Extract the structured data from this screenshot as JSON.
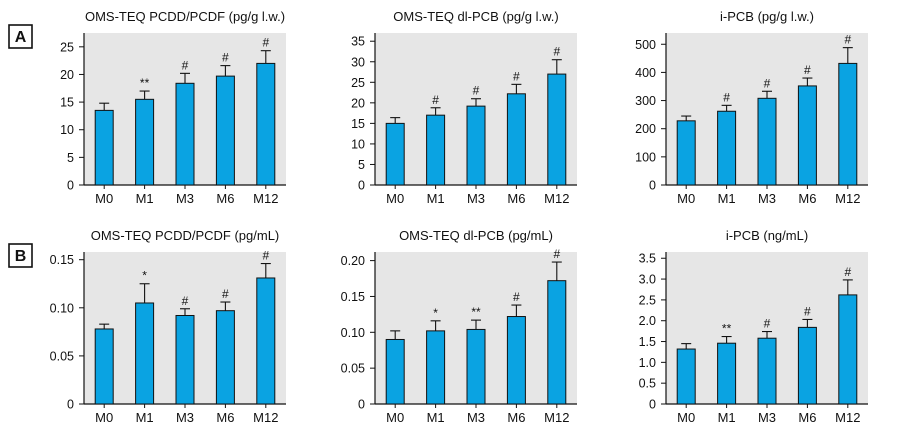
{
  "panels": [
    {
      "label": "A"
    },
    {
      "label": "B"
    }
  ],
  "colors": {
    "bar": "#0aa3e2",
    "plot_bg": "#e6e6e6",
    "axis": "#111111"
  },
  "chart_data": [
    {
      "type": "bar",
      "panel": "A",
      "title": "OMS-TEQ PCDD/PCDF (pg/g l.w.)",
      "categories": [
        "M0",
        "M1",
        "M3",
        "M6",
        "M12"
      ],
      "values": [
        13.5,
        15.5,
        18.4,
        19.7,
        22.0
      ],
      "error_upper": [
        14.8,
        17.0,
        20.2,
        21.6,
        24.3
      ],
      "annotations": [
        "",
        "**",
        "#",
        "#",
        "#"
      ],
      "ylim": [
        0,
        27.5
      ],
      "yticks": [
        0,
        5,
        10,
        15,
        20,
        25
      ],
      "yticklabels": [
        "0",
        "5",
        "10",
        "15",
        "20",
        "25"
      ]
    },
    {
      "type": "bar",
      "panel": "A",
      "title": "OMS-TEQ dl-PCB (pg/g l.w.)",
      "categories": [
        "M0",
        "M1",
        "M3",
        "M6",
        "M12"
      ],
      "values": [
        15.0,
        17.0,
        19.2,
        22.2,
        27.0
      ],
      "error_upper": [
        16.4,
        18.8,
        21.0,
        24.5,
        30.5
      ],
      "annotations": [
        "",
        "#",
        "#",
        "#",
        "#"
      ],
      "ylim": [
        0,
        37
      ],
      "yticks": [
        0,
        5,
        10,
        15,
        20,
        25,
        30,
        35
      ],
      "yticklabels": [
        "0",
        "5",
        "10",
        "15",
        "20",
        "25",
        "30",
        "35"
      ]
    },
    {
      "type": "bar",
      "panel": "A",
      "title": "i-PCB (pg/g l.w.)",
      "categories": [
        "M0",
        "M1",
        "M3",
        "M6",
        "M12"
      ],
      "values": [
        228,
        262,
        308,
        352,
        432
      ],
      "error_upper": [
        245,
        283,
        333,
        380,
        488
      ],
      "annotations": [
        "",
        "#",
        "#",
        "#",
        "#"
      ],
      "ylim": [
        0,
        540
      ],
      "yticks": [
        0,
        100,
        200,
        300,
        400,
        500
      ],
      "yticklabels": [
        "0",
        "100",
        "200",
        "300",
        "400",
        "500"
      ]
    },
    {
      "type": "bar",
      "panel": "B",
      "title": "OMS-TEQ PCDD/PCDF (pg/mL)",
      "categories": [
        "M0",
        "M1",
        "M3",
        "M6",
        "M12"
      ],
      "values": [
        0.078,
        0.105,
        0.092,
        0.097,
        0.131
      ],
      "error_upper": [
        0.083,
        0.125,
        0.099,
        0.106,
        0.146
      ],
      "annotations": [
        "",
        "*",
        "#",
        "#",
        "#"
      ],
      "ylim": [
        0,
        0.158
      ],
      "yticks": [
        0,
        0.05,
        0.1,
        0.15
      ],
      "yticklabels": [
        "0",
        "0.05",
        "0.10",
        "0.15"
      ]
    },
    {
      "type": "bar",
      "panel": "B",
      "title": "OMS-TEQ dl-PCB (pg/mL)",
      "categories": [
        "M0",
        "M1",
        "M3",
        "M6",
        "M12"
      ],
      "values": [
        0.09,
        0.102,
        0.104,
        0.122,
        0.172
      ],
      "error_upper": [
        0.102,
        0.116,
        0.117,
        0.138,
        0.198
      ],
      "annotations": [
        "",
        "*",
        "**",
        "#",
        "#"
      ],
      "ylim": [
        0,
        0.212
      ],
      "yticks": [
        0,
        0.05,
        0.1,
        0.15,
        0.2
      ],
      "yticklabels": [
        "0",
        "0.05",
        "0.10",
        "0.15",
        "0.20"
      ]
    },
    {
      "type": "bar",
      "panel": "B",
      "title": "i-PCB (ng/mL)",
      "categories": [
        "M0",
        "M1",
        "M3",
        "M6",
        "M12"
      ],
      "values": [
        1.32,
        1.46,
        1.58,
        1.84,
        2.62
      ],
      "error_upper": [
        1.45,
        1.62,
        1.74,
        2.03,
        2.98
      ],
      "annotations": [
        "",
        "**",
        "#",
        "#",
        "#"
      ],
      "ylim": [
        0,
        3.65
      ],
      "yticks": [
        0,
        0.5,
        1,
        1.5,
        2,
        2.5,
        3,
        3.5
      ],
      "yticklabels": [
        "0",
        "0.5",
        "1.0",
        "1.5",
        "2.0",
        "2.5",
        "3.0",
        "3.5"
      ]
    }
  ]
}
